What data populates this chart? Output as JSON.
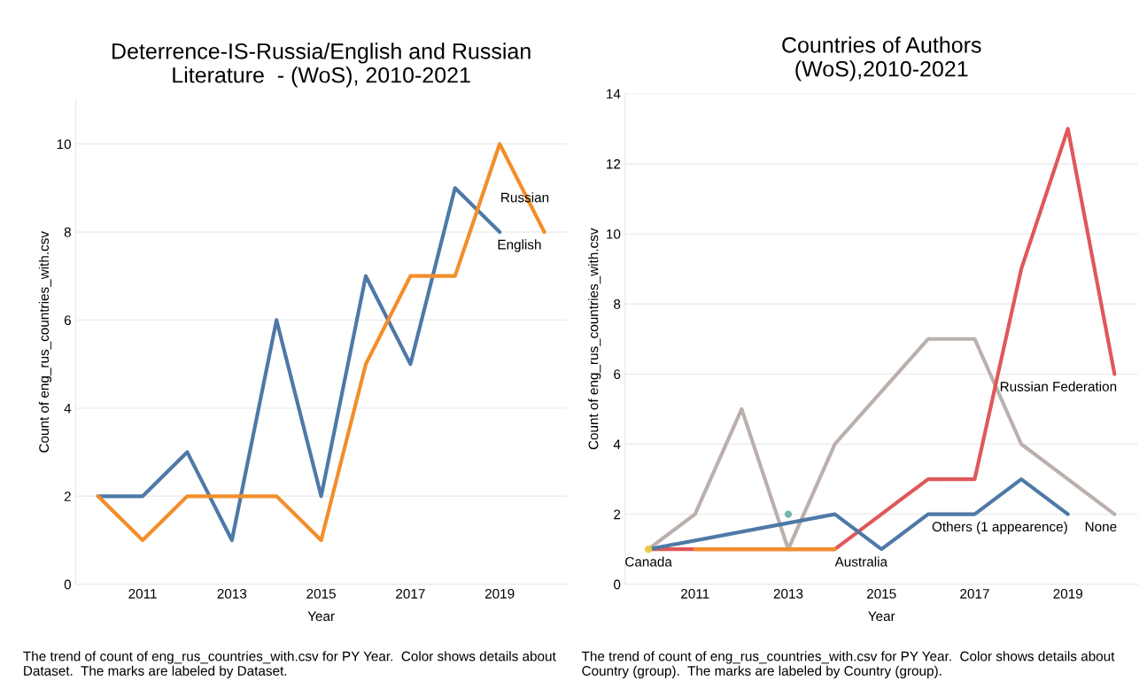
{
  "chart_data": [
    {
      "type": "line",
      "title": "Deterrence-IS-Russia/English and Russian\nLiterature  - (WoS), 2010-2021",
      "xlabel": "Year",
      "ylabel": "Count of eng_rus_countries_with.csv",
      "x": [
        2010,
        2011,
        2012,
        2013,
        2014,
        2015,
        2016,
        2017,
        2018,
        2019,
        2020
      ],
      "series": [
        {
          "name": "English",
          "color": "#4e79a7",
          "values": [
            2,
            2,
            3,
            1,
            6,
            2,
            7,
            5,
            9,
            8,
            null
          ]
        },
        {
          "name": "Russian",
          "color": "#f28e2b",
          "values": [
            2,
            1,
            2,
            2,
            2,
            1,
            5,
            7,
            7,
            10,
            8
          ]
        }
      ],
      "xlim": [
        2009.5,
        2020.5
      ],
      "xticks": [
        2011,
        2013,
        2015,
        2017,
        2019
      ],
      "ylim": [
        0,
        11
      ],
      "yticks": [
        0,
        2,
        4,
        6,
        8,
        10
      ],
      "grid": "y",
      "legend": false,
      "marker": "none",
      "line_style": "solid",
      "annotations": [
        "The trend of count of eng_rus_countries_with.csv for PY Year.  Color shows details about\nDataset.  The marks are labeled by Dataset."
      ]
    },
    {
      "type": "line",
      "title": "Countries of Authors\n(WoS),2010-2021",
      "xlabel": "Year",
      "ylabel": "Count of eng_rus_countries_with.csv",
      "series": [
        {
          "name": "None",
          "color": "#bab0ac",
          "x": [
            2010,
            2011,
            2012,
            2013,
            2014,
            2016,
            2017,
            2018,
            2020
          ],
          "values": [
            1,
            2,
            5,
            1,
            4,
            7,
            7,
            4,
            2
          ]
        },
        {
          "name": "Russian Federation",
          "color": "#e15759",
          "x": [
            2010,
            2011,
            2012,
            2013,
            2014,
            2015,
            2016,
            2017,
            2018,
            2019,
            2020
          ],
          "values": [
            1,
            1,
            1,
            1,
            1,
            2,
            3,
            3,
            9,
            13,
            6
          ]
        },
        {
          "name": "Australia",
          "color": "#f28e2b",
          "x": [
            2011,
            2012,
            2013,
            2014
          ],
          "values": [
            1,
            1,
            1,
            1
          ]
        },
        {
          "name": "Others (1 appearence)",
          "color": "#4e79a7",
          "x": [
            2010,
            2014,
            2015,
            2016,
            2017,
            2018,
            2019
          ],
          "values": [
            1,
            2,
            1,
            2,
            2,
            3,
            2
          ]
        },
        {
          "name": "Canada",
          "type": "scatter",
          "marker": "circle",
          "color": "#edc948",
          "x": [
            2010
          ],
          "values": [
            1
          ]
        },
        {
          "type": "scatter",
          "marker": "circle",
          "color": "#76b7b2",
          "x": [
            2013
          ],
          "values": [
            2
          ]
        }
      ],
      "xlim": [
        2009.5,
        2020.5
      ],
      "xticks": [
        2011,
        2013,
        2015,
        2017,
        2019
      ],
      "ylim": [
        0,
        14
      ],
      "yticks": [
        0,
        2,
        4,
        6,
        8,
        10,
        12,
        14
      ],
      "grid": "y",
      "legend": false,
      "marker": "none",
      "line_style": "solid",
      "annotations": [
        "The trend of count of eng_rus_countries_with.csv for PY Year.  Color shows details about\nCountry (group).  The marks are labeled by Country (group)."
      ]
    }
  ]
}
